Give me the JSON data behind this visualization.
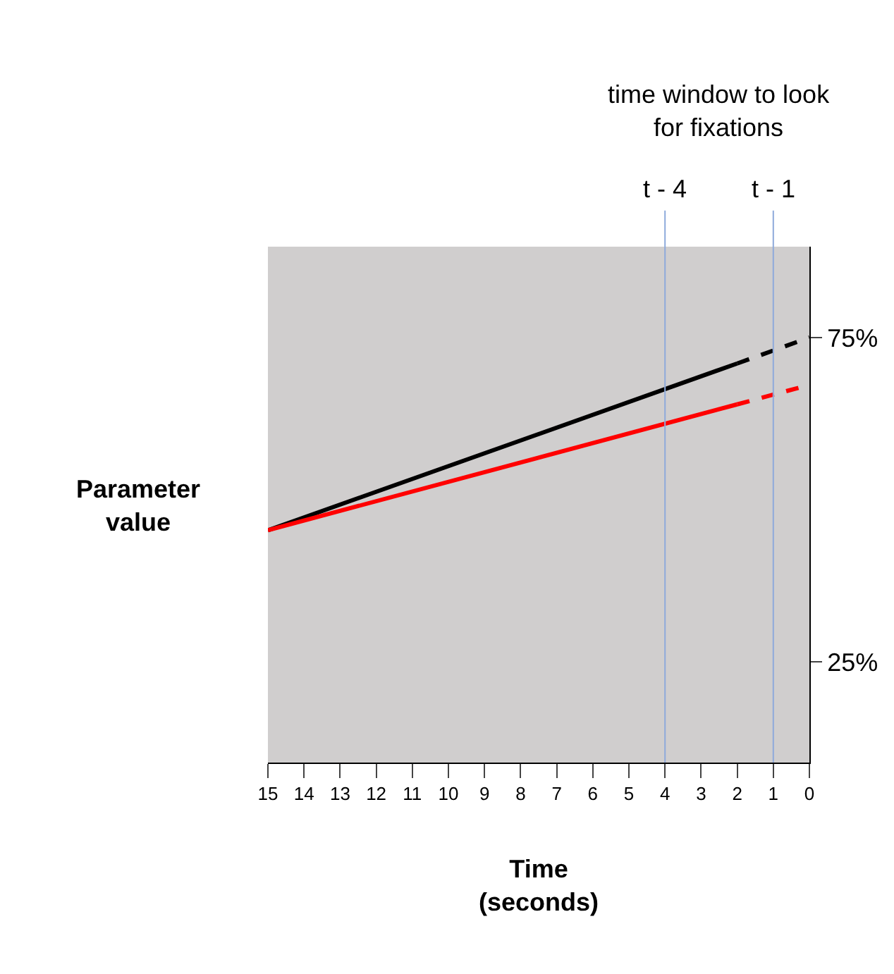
{
  "chart_data": {
    "type": "line",
    "xlabel": "Time\n(seconds)",
    "ylabel": "Parameter value",
    "series": [
      {
        "color": "#000000",
        "x": [
          15,
          2
        ],
        "values": [
          45.3,
          71.0
        ],
        "line_style": "solid"
      },
      {
        "color": "#000000",
        "x": [
          2,
          0
        ],
        "values": [
          71.0,
          75.0
        ],
        "line_style": "dashed"
      },
      {
        "color": "#ff0000",
        "x": [
          15,
          2
        ],
        "values": [
          45.3,
          64.7
        ],
        "line_style": "solid"
      },
      {
        "color": "#ff0000",
        "x": [
          2,
          0
        ],
        "values": [
          64.7,
          67.7
        ],
        "line_style": "dashed"
      }
    ],
    "xlim": [
      15,
      0
    ],
    "xticks": [
      15,
      14,
      13,
      12,
      11,
      10,
      9,
      8,
      7,
      6,
      5,
      4,
      3,
      2,
      1,
      0
    ],
    "ylim": [
      9.5,
      89
    ],
    "yticks": [
      {
        "value": 25,
        "label": "25%"
      },
      {
        "value": 75,
        "label": "75%"
      }
    ],
    "ref_lines": [
      {
        "axis": "x",
        "value": 4,
        "label": "t - 4",
        "color": "#8eaadb"
      },
      {
        "axis": "x",
        "value": 1,
        "label": "t - 1",
        "color": "#8eaadb"
      }
    ],
    "annotations": [
      "time window to look for fixations"
    ],
    "grid": false
  }
}
